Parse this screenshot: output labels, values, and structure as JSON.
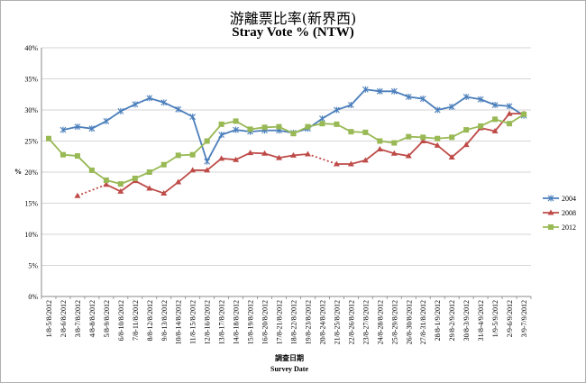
{
  "chart_data": {
    "type": "line",
    "title": "游離票比率(新界西)",
    "subtitle": "Stray Vote % (NTW)",
    "xlabel_cn": "調查日期",
    "xlabel": "Survey Date",
    "ylabel": "%",
    "ylim": [
      0,
      40
    ],
    "yticks": [
      "0%",
      "5%",
      "10%",
      "15%",
      "20%",
      "25%",
      "30%",
      "35%",
      "40%"
    ],
    "grid": "horizontal",
    "legend_position": "right",
    "categories": [
      "1/8-5/8/2012",
      "2/8-6/8/2012",
      "3/8-7/8/2012",
      "4/8-8/8/2012",
      "5/8-9/8/2012",
      "6/8-10/8/2012",
      "7/8-11/8/2012",
      "8/8-12/8/2012",
      "9/8-13/8/2012",
      "10/8-14/8/2012",
      "11/8-15/8/2012",
      "12/8-16/8/2012",
      "13/8-17/8/2012",
      "14/8-18/8/2012",
      "15/8-19/8/2012",
      "16/8-20/8/2012",
      "17/8-21/8/2012",
      "18/8-22/8/2012",
      "19/8-23/8/2012",
      "20/8-24/8/2012",
      "21/8-25/8/2012",
      "22/8-26/8/2012",
      "23/8-27/8/2012",
      "24/8-28/8/2012",
      "25/8-29/8/2012",
      "26/8-30/8/2012",
      "27/8-31/8/2012",
      "28/8-1/9/2012",
      "29/8-2/9/2012",
      "30/8-3/9/2012",
      "31/8-4/9/2012",
      "1/9-5/9/2012",
      "2/9-6/9/2012",
      "3/9-7/9/2012"
    ],
    "series": [
      {
        "name": "2004",
        "color": "#4a7ebb",
        "marker": "star",
        "values": [
          null,
          26.8,
          27.3,
          27.0,
          28.2,
          29.8,
          30.9,
          31.9,
          31.2,
          30.1,
          28.9,
          21.7,
          26.0,
          26.8,
          26.5,
          26.7,
          26.7,
          26.3,
          27.0,
          28.6,
          30.0,
          30.8,
          33.3,
          33.0,
          33.0,
          32.1,
          31.8,
          30.0,
          30.5,
          32.1,
          31.7,
          30.8,
          30.6,
          29.1
        ]
      },
      {
        "name": "2008",
        "color": "#be4b48",
        "marker": "triangle",
        "values": [
          null,
          null,
          16.2,
          null,
          18.0,
          16.9,
          18.6,
          17.4,
          16.6,
          18.4,
          20.3,
          20.3,
          22.2,
          22.0,
          23.1,
          23.0,
          22.3,
          22.7,
          22.9,
          null,
          21.3,
          21.3,
          21.9,
          23.7,
          23.0,
          22.6,
          25.0,
          24.3,
          22.4,
          24.4,
          27.1,
          26.6,
          29.4,
          29.4
        ],
        "dotted_segments": [
          [
            2,
            4
          ],
          [
            18,
            20
          ]
        ]
      },
      {
        "name": "2012",
        "color": "#98b954",
        "marker": "square",
        "values": [
          25.4,
          22.8,
          22.6,
          20.3,
          18.7,
          18.1,
          19.0,
          20.0,
          21.2,
          22.7,
          22.8,
          25.0,
          27.7,
          28.2,
          26.9,
          27.2,
          27.3,
          26.2,
          27.3,
          27.8,
          27.7,
          26.5,
          26.4,
          25.0,
          24.7,
          25.7,
          25.6,
          25.4,
          25.6,
          26.8,
          27.4,
          28.5,
          27.8,
          29.3
        ]
      }
    ]
  }
}
